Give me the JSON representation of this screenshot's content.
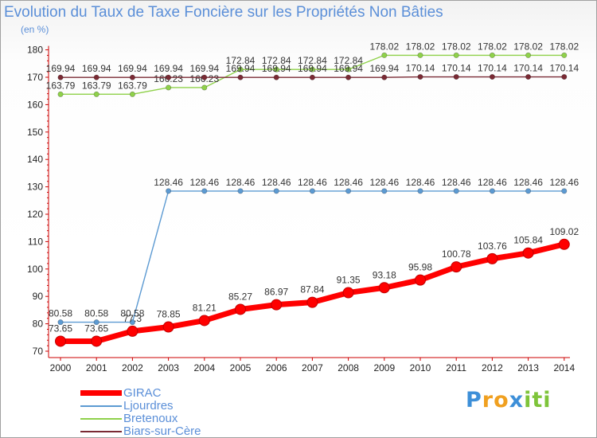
{
  "title": "Evolution du Taux de Taxe Foncière sur les Propriétés Non Bâties",
  "unit": "(en %)",
  "chart_data": {
    "type": "line",
    "title": "Evolution du Taux de Taxe Foncière sur les Propriétés Non Bâties",
    "ylabel": "(en %)",
    "xlabel": "",
    "ylim": [
      70,
      180
    ],
    "yticks": [
      70,
      80,
      90,
      100,
      110,
      120,
      130,
      140,
      150,
      160,
      170,
      180
    ],
    "grid": false,
    "legend": "bottom-left",
    "categories": [
      "2000",
      "2001",
      "2002",
      "2003",
      "2004",
      "2005",
      "2006",
      "2007",
      "2008",
      "2009",
      "2010",
      "2011",
      "2012",
      "2013",
      "2014"
    ],
    "series": [
      {
        "name": "GIRAC",
        "color": "#ff0000",
        "values": [
          73.65,
          73.65,
          77.3,
          78.85,
          81.21,
          85.27,
          86.97,
          87.84,
          91.35,
          93.18,
          95.98,
          100.78,
          103.76,
          105.84,
          109.02
        ],
        "labels": [
          "73.65",
          "73.65",
          "77.3",
          "78.85",
          "81.21",
          "85.27",
          "86.97",
          "87.84",
          "91.35",
          "93.18",
          "95.98",
          "100.78",
          "103.76",
          "105.84",
          "109.02"
        ]
      },
      {
        "name": "Ljourdres",
        "color": "#5c9ad2",
        "values": [
          80.58,
          80.58,
          80.58,
          128.46,
          128.46,
          128.46,
          128.46,
          128.46,
          128.46,
          128.46,
          128.46,
          128.46,
          128.46,
          128.46,
          128.46
        ],
        "labels": [
          "80.58",
          "80.58",
          "80.58",
          "128.46",
          "128.46",
          "128.46",
          "128.46",
          "128.46",
          "128.46",
          "128.46",
          "128.46",
          "128.46",
          "128.46",
          "128.46",
          "128.46"
        ]
      },
      {
        "name": "Bretenoux",
        "color": "#8fd14a",
        "values": [
          163.79,
          163.79,
          163.79,
          166.23,
          166.23,
          172.84,
          172.84,
          172.84,
          172.84,
          178.02,
          178.02,
          178.02,
          178.02,
          178.02,
          178.02
        ],
        "labels": [
          "163.79",
          "163.79",
          "163.79",
          "166.23",
          "166.23",
          "172.84",
          "172.84",
          "172.84",
          "172.84",
          "178.02",
          "178.02",
          "178.02",
          "178.02",
          "178.02",
          "178.02"
        ]
      },
      {
        "name": "Biars-sur-Cère",
        "color": "#7a2a34",
        "values": [
          169.94,
          169.94,
          169.94,
          169.94,
          169.94,
          169.94,
          169.94,
          169.94,
          169.94,
          169.94,
          170.14,
          170.14,
          170.14,
          170.14,
          170.14
        ],
        "labels": [
          "169.94",
          "169.94",
          "169.94",
          "169.94",
          "169.94",
          "169.94",
          "169.94",
          "169.94",
          "169.94",
          "169.94",
          "170.14",
          "170.14",
          "170.14",
          "170.14",
          "170.14"
        ]
      }
    ]
  },
  "legend": {
    "items": [
      {
        "label": "GIRAC",
        "color": "#ff0000"
      },
      {
        "label": "Ljourdres",
        "color": "#5c9ad2"
      },
      {
        "label": "Bretenoux",
        "color": "#8fd14a"
      },
      {
        "label": "Biars-sur-Cère",
        "color": "#7a2a34"
      }
    ]
  },
  "logo": {
    "letters": [
      "P",
      "r",
      "o",
      "x",
      "i",
      "t",
      "i"
    ],
    "colors": [
      "#3d8fd8",
      "#f0a020",
      "#f0a020",
      "#3d8fd8",
      "#7ec43a",
      "#7ec43a",
      "#7ec43a"
    ]
  }
}
